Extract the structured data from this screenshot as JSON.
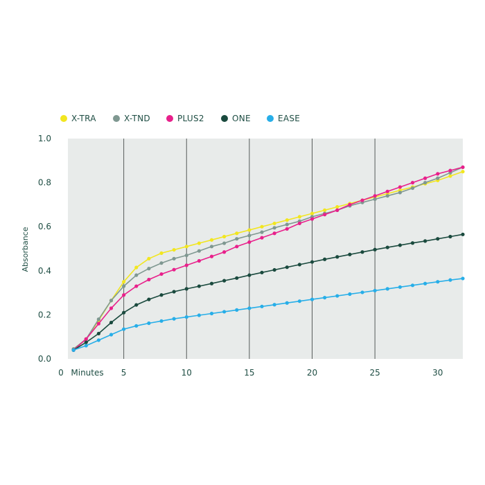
{
  "chart_data": {
    "type": "line",
    "title": "",
    "xlabel": "Minutes",
    "ylabel": "Absorbance",
    "xlim": [
      0,
      32
    ],
    "ylim": [
      0,
      1.0
    ],
    "x_ticks": [
      "0",
      "5",
      "10",
      "15",
      "20",
      "25",
      "30"
    ],
    "y_ticks": [
      "0.0",
      "0.2",
      "0.4",
      "0.6",
      "0.8",
      "1.0"
    ],
    "legend_position": "top-left",
    "vertical_gridlines_at": [
      5,
      10,
      15,
      20,
      25
    ],
    "x": [
      1,
      2,
      3,
      4,
      5,
      6,
      7,
      8,
      9,
      10,
      11,
      12,
      13,
      14,
      15,
      16,
      17,
      18,
      19,
      20,
      21,
      22,
      23,
      24,
      25,
      26,
      27,
      28,
      29,
      30,
      31,
      32
    ],
    "series": [
      {
        "name": "X-TRA",
        "color": "#f2e620",
        "values": [
          0.045,
          0.09,
          0.175,
          0.265,
          0.35,
          0.415,
          0.455,
          0.48,
          0.495,
          0.51,
          0.525,
          0.54,
          0.555,
          0.57,
          0.585,
          0.6,
          0.615,
          0.63,
          0.645,
          0.66,
          0.675,
          0.69,
          0.705,
          0.72,
          0.735,
          0.75,
          0.765,
          0.78,
          0.795,
          0.81,
          0.83,
          0.85
        ]
      },
      {
        "name": "X-TND",
        "color": "#7f9891",
        "values": [
          0.045,
          0.09,
          0.18,
          0.265,
          0.33,
          0.38,
          0.41,
          0.435,
          0.455,
          0.47,
          0.49,
          0.51,
          0.525,
          0.545,
          0.56,
          0.575,
          0.595,
          0.61,
          0.625,
          0.645,
          0.66,
          0.675,
          0.695,
          0.71,
          0.725,
          0.74,
          0.755,
          0.775,
          0.8,
          0.82,
          0.845,
          0.87
        ]
      },
      {
        "name": "PLUS2",
        "color": "#e8208b",
        "values": [
          0.04,
          0.09,
          0.16,
          0.23,
          0.29,
          0.33,
          0.36,
          0.385,
          0.405,
          0.425,
          0.445,
          0.465,
          0.485,
          0.51,
          0.53,
          0.55,
          0.57,
          0.59,
          0.615,
          0.635,
          0.655,
          0.675,
          0.7,
          0.72,
          0.74,
          0.76,
          0.78,
          0.8,
          0.82,
          0.84,
          0.855,
          0.87
        ]
      },
      {
        "name": "ONE",
        "color": "#1a4a3e",
        "values": [
          0.04,
          0.075,
          0.115,
          0.165,
          0.21,
          0.245,
          0.27,
          0.29,
          0.305,
          0.318,
          0.33,
          0.342,
          0.355,
          0.367,
          0.38,
          0.392,
          0.404,
          0.416,
          0.428,
          0.44,
          0.452,
          0.463,
          0.474,
          0.485,
          0.496,
          0.506,
          0.516,
          0.526,
          0.535,
          0.545,
          0.555,
          0.565
        ]
      },
      {
        "name": "EASE",
        "color": "#27aee8",
        "values": [
          0.04,
          0.06,
          0.085,
          0.11,
          0.135,
          0.15,
          0.162,
          0.172,
          0.182,
          0.19,
          0.198,
          0.206,
          0.214,
          0.222,
          0.23,
          0.238,
          0.246,
          0.254,
          0.262,
          0.27,
          0.278,
          0.286,
          0.294,
          0.302,
          0.31,
          0.318,
          0.326,
          0.334,
          0.342,
          0.35,
          0.358,
          0.365
        ]
      }
    ]
  }
}
